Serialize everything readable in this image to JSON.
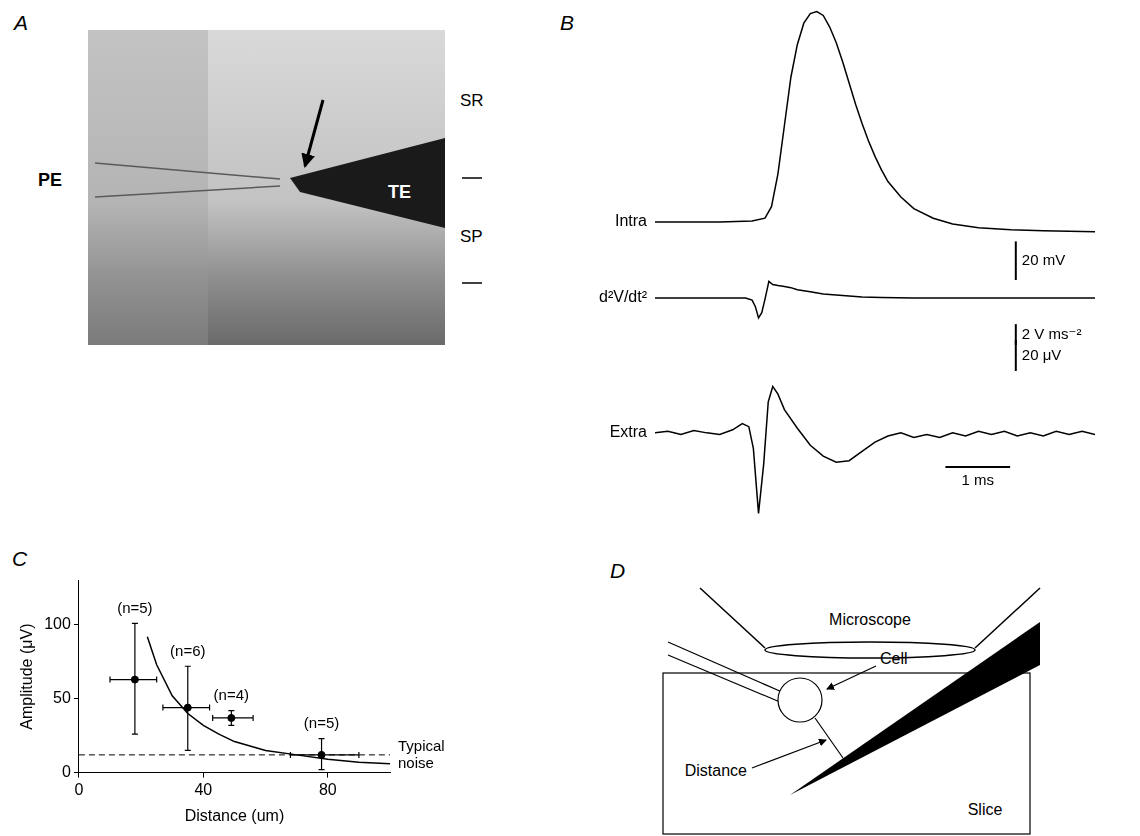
{
  "chart_data": [
    {
      "panel": "B",
      "type": "line",
      "title": "Intra",
      "color": "#000000",
      "grid": false,
      "tick_labels": false,
      "x": [
        0,
        0.5,
        1.0,
        1.5,
        1.7,
        1.8,
        1.9,
        2.0,
        2.1,
        2.2,
        2.3,
        2.4,
        2.5,
        2.6,
        2.7,
        2.8,
        2.9,
        3.0,
        3.1,
        3.2,
        3.3,
        3.4,
        3.5,
        3.6,
        3.8,
        4.0,
        4.3,
        4.6,
        5.0,
        5.5,
        6.0,
        6.8
      ],
      "values": [
        0,
        0,
        0,
        0.5,
        2,
        8,
        25,
        50,
        75,
        92,
        103,
        108,
        109,
        107,
        101,
        93,
        83,
        72,
        61,
        51,
        42,
        34,
        27,
        21,
        13,
        7,
        2,
        -1,
        -3,
        -4,
        -4.5,
        -5
      ],
      "xlim": [
        0,
        6.8
      ],
      "ylim": [
        -30,
        115
      ],
      "scale_bar": {
        "value": 20,
        "label": "20 mV"
      }
    },
    {
      "panel": "B",
      "type": "line",
      "title": "d²V/dt²",
      "color": "#000000",
      "grid": false,
      "tick_labels": false,
      "x": [
        0,
        0.5,
        1.0,
        1.4,
        1.5,
        1.55,
        1.6,
        1.65,
        1.7,
        1.76,
        1.82,
        1.9,
        2.0,
        2.1,
        2.2,
        2.4,
        2.6,
        2.8,
        3.0,
        3.2,
        3.5,
        4.0,
        5.0,
        6.0,
        6.8
      ],
      "values": [
        0,
        0,
        0,
        0,
        -0.2,
        -0.8,
        -1.9,
        -1.4,
        -0.1,
        1.6,
        1.3,
        1.2,
        1.1,
        1.0,
        0.8,
        0.6,
        0.4,
        0.3,
        0.2,
        0.1,
        0.05,
        0,
        0,
        0,
        0
      ],
      "xlim": [
        0,
        6.8
      ],
      "ylim": [
        -4.5,
        2.5
      ],
      "scale_bar": {
        "value": 2,
        "label": "2 V ms⁻²"
      }
    },
    {
      "panel": "B",
      "type": "line",
      "title": "Extra",
      "color": "#000000",
      "grid": false,
      "tick_labels": false,
      "x": [
        0,
        0.2,
        0.4,
        0.6,
        0.8,
        1.0,
        1.2,
        1.35,
        1.45,
        1.52,
        1.6,
        1.68,
        1.75,
        1.82,
        1.9,
        2.0,
        2.2,
        2.4,
        2.6,
        2.8,
        3.0,
        3.2,
        3.4,
        3.6,
        3.8,
        4.0,
        4.2,
        4.4,
        4.6,
        4.8,
        5.0,
        5.2,
        5.4,
        5.6,
        5.8,
        6.0,
        6.2,
        6.4,
        6.6,
        6.8
      ],
      "values": [
        0,
        1,
        -1,
        1.5,
        0,
        -1,
        2,
        6,
        4,
        -10,
        -52,
        -20,
        20,
        30,
        25,
        15,
        3,
        -8,
        -15,
        -19,
        -18,
        -12,
        -6,
        -2,
        0,
        -3,
        -1,
        -3,
        0,
        -2,
        1,
        -1,
        1,
        -2,
        0,
        -2,
        1,
        -1,
        1,
        -1
      ],
      "xlim": [
        0,
        6.8
      ],
      "ylim": [
        -55,
        60
      ],
      "scale_bar": {
        "value": 20,
        "label": "20 μV"
      },
      "x_scale_bar": {
        "value": 1,
        "label": "1 ms"
      }
    },
    {
      "panel": "C",
      "type": "scatter",
      "color": "#000000",
      "marker": "circle",
      "grid": false,
      "x_label": "Distance (um)",
      "y_label": "Amplitude (μV)",
      "x": [
        18,
        35,
        49,
        78
      ],
      "values": [
        63,
        44,
        37,
        12
      ],
      "x_error": [
        [
          10,
          25
        ],
        [
          27,
          42
        ],
        [
          43,
          56
        ],
        [
          68,
          90
        ]
      ],
      "y_error": [
        [
          26,
          101
        ],
        [
          15,
          72
        ],
        [
          32,
          42
        ],
        [
          2,
          23
        ]
      ],
      "annotations": [
        "(n=5)",
        "(n=6)",
        "(n=4)",
        "(n=5)"
      ],
      "fit": {
        "x": [
          22,
          25,
          30,
          35,
          40,
          45,
          50,
          60,
          70,
          80,
          90,
          100
        ],
        "values": [
          92,
          73,
          52,
          40,
          32,
          26,
          21,
          15,
          12,
          9,
          7,
          6
        ]
      },
      "noise_level": {
        "value": 12,
        "label": "Typical noise",
        "line_style": "dashed"
      },
      "xlim": [
        0,
        100
      ],
      "ylim": [
        0,
        130
      ],
      "xticks": [
        0,
        40,
        80
      ],
      "yticks": [
        0,
        50,
        100
      ]
    }
  ],
  "panel_a": {
    "letter": "A",
    "labels": {
      "pe": "PE",
      "te": "TE",
      "sr": "SR",
      "sp": "SP"
    }
  },
  "panel_d": {
    "letter": "D",
    "labels": {
      "microscope": "Microscope",
      "cell": "Cell",
      "distance": "Distance",
      "slice": "Slice"
    }
  }
}
